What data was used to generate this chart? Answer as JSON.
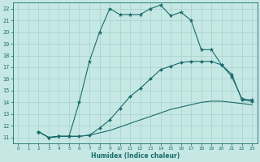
{
  "xlabel": "Humidex (Indice chaleur)",
  "xlim": [
    -0.5,
    23.5
  ],
  "ylim": [
    10.5,
    22.5
  ],
  "yticks": [
    11,
    12,
    13,
    14,
    15,
    16,
    17,
    18,
    19,
    20,
    21,
    22
  ],
  "xticks": [
    0,
    1,
    2,
    3,
    4,
    5,
    6,
    7,
    8,
    9,
    10,
    11,
    12,
    13,
    14,
    15,
    16,
    17,
    18,
    19,
    20,
    21,
    22,
    23
  ],
  "bg_color": "#c5e8e5",
  "line_color": "#1a6b6b",
  "grid_color": "#a8d0cc",
  "curve1_x": [
    2,
    3,
    4,
    5,
    6,
    7,
    8,
    9,
    10,
    11,
    12,
    13,
    14,
    15,
    16,
    17,
    18,
    19,
    20,
    21,
    22,
    23
  ],
  "curve1_y": [
    11.5,
    11.0,
    11.1,
    11.1,
    14.0,
    17.5,
    20.0,
    22.0,
    21.5,
    21.5,
    21.5,
    22.0,
    22.3,
    21.4,
    21.7,
    21.0,
    18.5,
    18.5,
    17.2,
    16.2,
    14.3,
    14.2
  ],
  "curve2_x": [
    2,
    3,
    4,
    5,
    6,
    7,
    8,
    9,
    10,
    11,
    12,
    13,
    14,
    15,
    16,
    17,
    18,
    19,
    20,
    21,
    22,
    23
  ],
  "curve2_y": [
    11.5,
    11.0,
    11.1,
    11.1,
    11.1,
    11.2,
    11.8,
    12.5,
    13.5,
    14.5,
    15.2,
    16.0,
    16.8,
    17.1,
    17.4,
    17.5,
    17.5,
    17.5,
    17.2,
    16.4,
    14.2,
    14.1
  ],
  "curve3_x": [
    2,
    3,
    4,
    5,
    6,
    7,
    8,
    9,
    10,
    11,
    12,
    13,
    14,
    15,
    16,
    17,
    18,
    19,
    20,
    21,
    22,
    23
  ],
  "curve3_y": [
    11.5,
    11.0,
    11.1,
    11.1,
    11.1,
    11.2,
    11.4,
    11.6,
    11.9,
    12.2,
    12.5,
    12.8,
    13.1,
    13.4,
    13.6,
    13.8,
    14.0,
    14.1,
    14.1,
    14.0,
    13.9,
    13.8
  ]
}
